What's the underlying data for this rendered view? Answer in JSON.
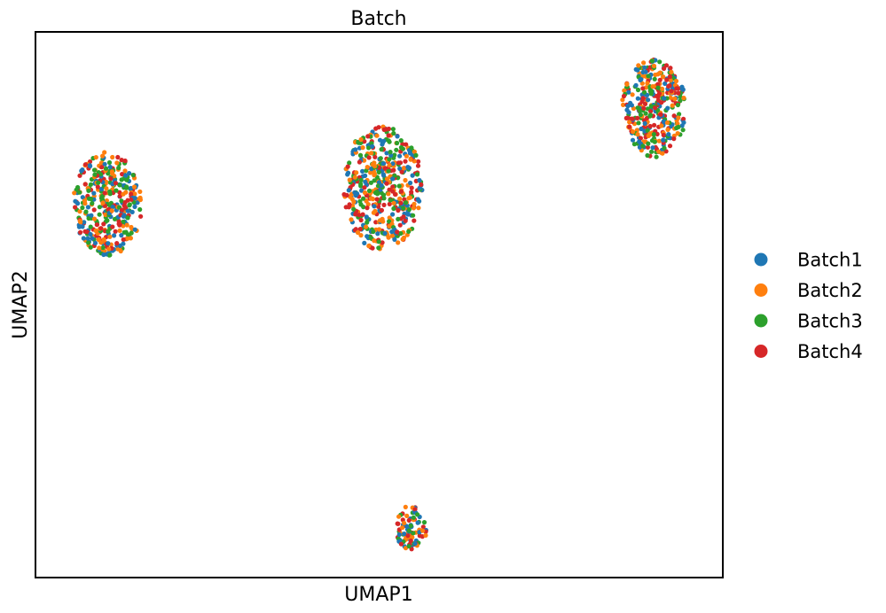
{
  "chart_data": {
    "type": "scatter",
    "title": "Batch",
    "xlabel": "UMAP1",
    "ylabel": "UMAP2",
    "xlim": [
      0,
      100
    ],
    "ylim": [
      0,
      100
    ],
    "grid": false,
    "ticks": false,
    "legend_position": "right",
    "series": [
      {
        "name": "Batch1",
        "color": "#1f77b4"
      },
      {
        "name": "Batch2",
        "color": "#ff7f0e"
      },
      {
        "name": "Batch3",
        "color": "#2ca02c"
      },
      {
        "name": "Batch4",
        "color": "#d62728"
      }
    ],
    "clusters": [
      {
        "center": [
          10.5,
          68.5
        ],
        "rx": 5.0,
        "ry": 9.5,
        "n": 380
      },
      {
        "center": [
          50.5,
          71.5
        ],
        "rx": 5.8,
        "ry": 11.5,
        "n": 480
      },
      {
        "center": [
          90.0,
          86.0
        ],
        "rx": 4.7,
        "ry": 9.0,
        "n": 350
      },
      {
        "center": [
          54.7,
          9.0
        ],
        "rx": 2.2,
        "ry": 4.5,
        "n": 90
      }
    ]
  }
}
